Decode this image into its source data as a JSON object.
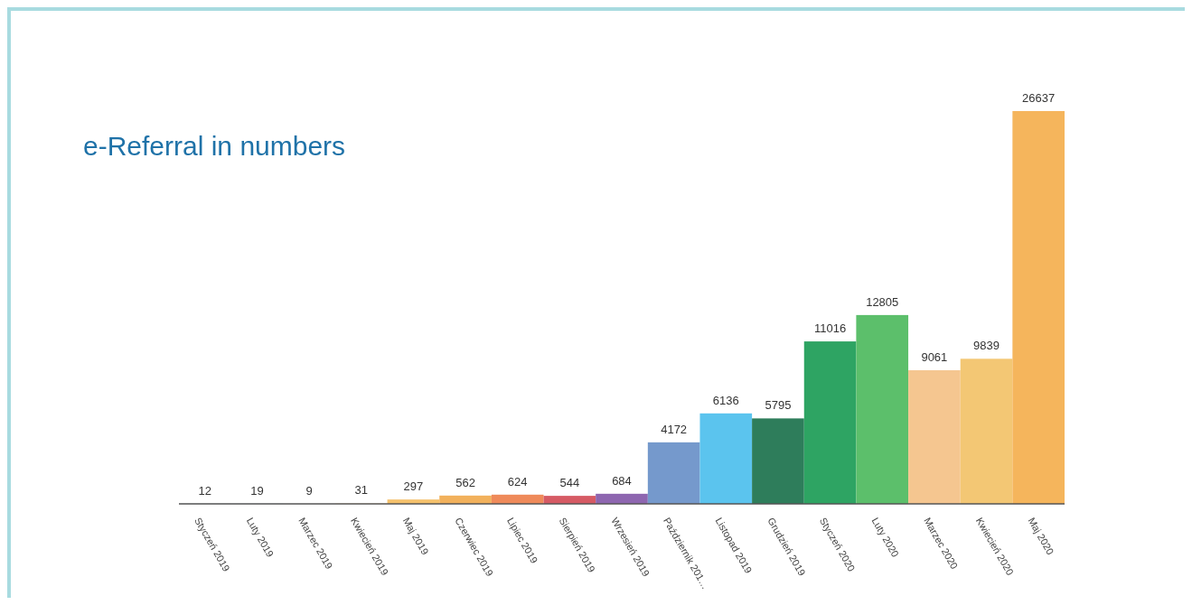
{
  "chart_data": {
    "type": "bar",
    "title": "e-Referral in numbers",
    "categories": [
      "Styczeń 2019",
      "Luty 2019",
      "Marzec 2019",
      "Kwiecień 2019",
      "Maj 2019",
      "Czerwiec 2019",
      "Lipiec 2019",
      "Sierpień 2019",
      "Wrzesień 2019",
      "Październik 201…",
      "Listopad 2019",
      "Grudzień 2019",
      "Styczeń 2020",
      "Luty 2020",
      "Marzec 2020",
      "Kwiecień 2020",
      "Maj 2020"
    ],
    "values": [
      12,
      19,
      9,
      31,
      297,
      562,
      624,
      544,
      684,
      4172,
      6136,
      5795,
      11016,
      12805,
      9061,
      9839,
      26637
    ],
    "colors": [
      "#9ab0c0",
      "#c8e4f0",
      "#e0e0e0",
      "#fbe8c0",
      "#f5c16c",
      "#f2b15c",
      "#ef8a5a",
      "#d65a64",
      "#8e66b0",
      "#7599cc",
      "#5bc4ee",
      "#2e7d5b",
      "#2ea463",
      "#5cbf6b",
      "#f5c690",
      "#f3c774",
      "#f5b55c"
    ],
    "data_labels": true
  }
}
